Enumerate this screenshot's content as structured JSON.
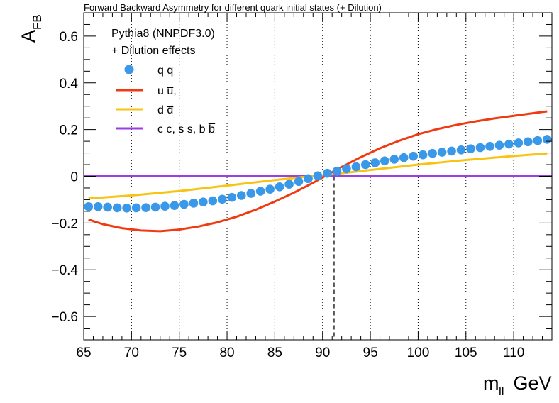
{
  "chart_data": {
    "type": "line",
    "title": "Forward Backward Asymmetry for different quark initial states (+ Dilution)",
    "xlabel": {
      "main": "m",
      "sub": "ll",
      "unit": " GeV"
    },
    "ylabel": {
      "main": "A",
      "sub": "FB"
    },
    "xlim": [
      65,
      114
    ],
    "ylim": [
      -0.7,
      0.7
    ],
    "x_ticks": [
      65,
      70,
      75,
      80,
      85,
      90,
      95,
      100,
      105,
      110
    ],
    "x_tick_labels": [
      "65",
      "70",
      "75",
      "80",
      "85",
      "90",
      "95",
      "100",
      "105",
      "110"
    ],
    "y_ticks": [
      -0.6,
      -0.4,
      -0.2,
      0,
      0.2,
      0.4,
      0.6
    ],
    "y_tick_labels": [
      "−0.6",
      "−0.4",
      "−0.2",
      "0",
      "0.2",
      "0.4",
      "0.6"
    ],
    "vertical_grid_at": [
      70,
      75,
      80,
      85,
      90,
      95,
      100,
      105,
      110
    ],
    "z_mass_line": 91.2,
    "legend": {
      "header_lines": [
        "Pythia8 (NNPDF3.0)",
        "+ Dilution effects"
      ],
      "entries": [
        {
          "label": "q q̅",
          "marker": "circle",
          "color": "#3a98e8"
        },
        {
          "label": "u u̅,",
          "marker": "line",
          "color": "#f03b12"
        },
        {
          "label": "d d̅",
          "marker": "line",
          "color": "#f7c414"
        },
        {
          "label": "c c̅, s s̅, b b̅",
          "marker": "line",
          "color": "#9a3fe0"
        }
      ]
    },
    "series": [
      {
        "name": "q qbar",
        "style": "markers",
        "color": "#3a98e8",
        "x": [
          65.5,
          66.5,
          67.5,
          68.5,
          69.5,
          70.5,
          71.5,
          72.5,
          73.5,
          74.5,
          75.5,
          76.5,
          77.5,
          78.5,
          79.5,
          80.5,
          81.5,
          82.5,
          83.5,
          84.5,
          85.5,
          86.5,
          87.5,
          88.5,
          89.5,
          90.5,
          91.5,
          92.5,
          93.5,
          94.5,
          95.5,
          96.5,
          97.5,
          98.5,
          99.5,
          100.5,
          101.5,
          102.5,
          103.5,
          104.5,
          105.5,
          106.5,
          107.5,
          108.5,
          109.5,
          110.5,
          111.5,
          112.5,
          113.5
        ],
        "y": [
          -0.13,
          -0.13,
          -0.132,
          -0.135,
          -0.136,
          -0.135,
          -0.134,
          -0.132,
          -0.128,
          -0.125,
          -0.12,
          -0.115,
          -0.11,
          -0.105,
          -0.098,
          -0.09,
          -0.082,
          -0.073,
          -0.064,
          -0.055,
          -0.045,
          -0.034,
          -0.022,
          -0.01,
          0.002,
          0.013,
          0.022,
          0.032,
          0.041,
          0.05,
          0.058,
          0.066,
          0.073,
          0.08,
          0.086,
          0.092,
          0.098,
          0.103,
          0.108,
          0.113,
          0.118,
          0.123,
          0.128,
          0.133,
          0.138,
          0.143,
          0.148,
          0.153,
          0.158
        ]
      },
      {
        "name": "u ubar",
        "style": "line",
        "color": "#f03b12",
        "x": [
          65.5,
          67,
          69,
          71,
          73,
          75,
          77,
          79,
          81,
          83,
          85,
          87,
          89,
          90,
          91,
          92,
          94,
          96,
          98,
          100,
          102,
          104,
          106,
          108,
          110,
          112,
          113.5
        ],
        "y": [
          -0.185,
          -0.205,
          -0.222,
          -0.232,
          -0.235,
          -0.228,
          -0.215,
          -0.197,
          -0.173,
          -0.143,
          -0.108,
          -0.07,
          -0.028,
          -0.005,
          0.018,
          0.04,
          0.082,
          0.12,
          0.152,
          0.18,
          0.202,
          0.22,
          0.235,
          0.248,
          0.259,
          0.27,
          0.278
        ]
      },
      {
        "name": "d dbar",
        "style": "line",
        "color": "#f7c414",
        "x": [
          65.5,
          70,
          75,
          80,
          85,
          88,
          90,
          92,
          95,
          100,
          105,
          110,
          113.5
        ],
        "y": [
          -0.095,
          -0.082,
          -0.063,
          -0.04,
          -0.016,
          -0.003,
          0.004,
          0.013,
          0.027,
          0.05,
          0.07,
          0.087,
          0.098
        ]
      },
      {
        "name": "c cbar, s sbar, b bbar",
        "style": "line",
        "color": "#9a3fe0",
        "x": [
          65,
          114
        ],
        "y": [
          0,
          0
        ]
      }
    ]
  }
}
